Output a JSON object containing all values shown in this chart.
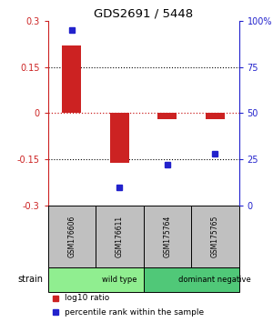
{
  "title": "GDS2691 / 5448",
  "samples": [
    "GSM176606",
    "GSM176611",
    "GSM175764",
    "GSM175765"
  ],
  "log10_ratio": [
    0.22,
    -0.16,
    -0.02,
    -0.02
  ],
  "percentile_rank": [
    95,
    10,
    22,
    28
  ],
  "groups": [
    {
      "label": "wild type",
      "span": [
        0,
        2
      ],
      "color": "#90EE90"
    },
    {
      "label": "dominant negative",
      "span": [
        2,
        4
      ],
      "color": "#50C878"
    }
  ],
  "left_ylim": [
    -0.3,
    0.3
  ],
  "right_ylim": [
    0,
    100
  ],
  "left_yticks": [
    -0.3,
    -0.15,
    0,
    0.15,
    0.3
  ],
  "right_yticks": [
    0,
    25,
    50,
    75,
    100
  ],
  "right_yticklabels": [
    "0",
    "25",
    "50",
    "75",
    "100%"
  ],
  "hlines_dotted": [
    0.15,
    -0.15
  ],
  "bar_color": "#CC2222",
  "dot_color": "#2222CC",
  "zero_line_color": "#CC2222",
  "background_color": "#ffffff",
  "sample_box_color": "#C0C0C0",
  "strain_label": "strain",
  "legend_bar_label": "log10 ratio",
  "legend_dot_label": "percentile rank within the sample"
}
